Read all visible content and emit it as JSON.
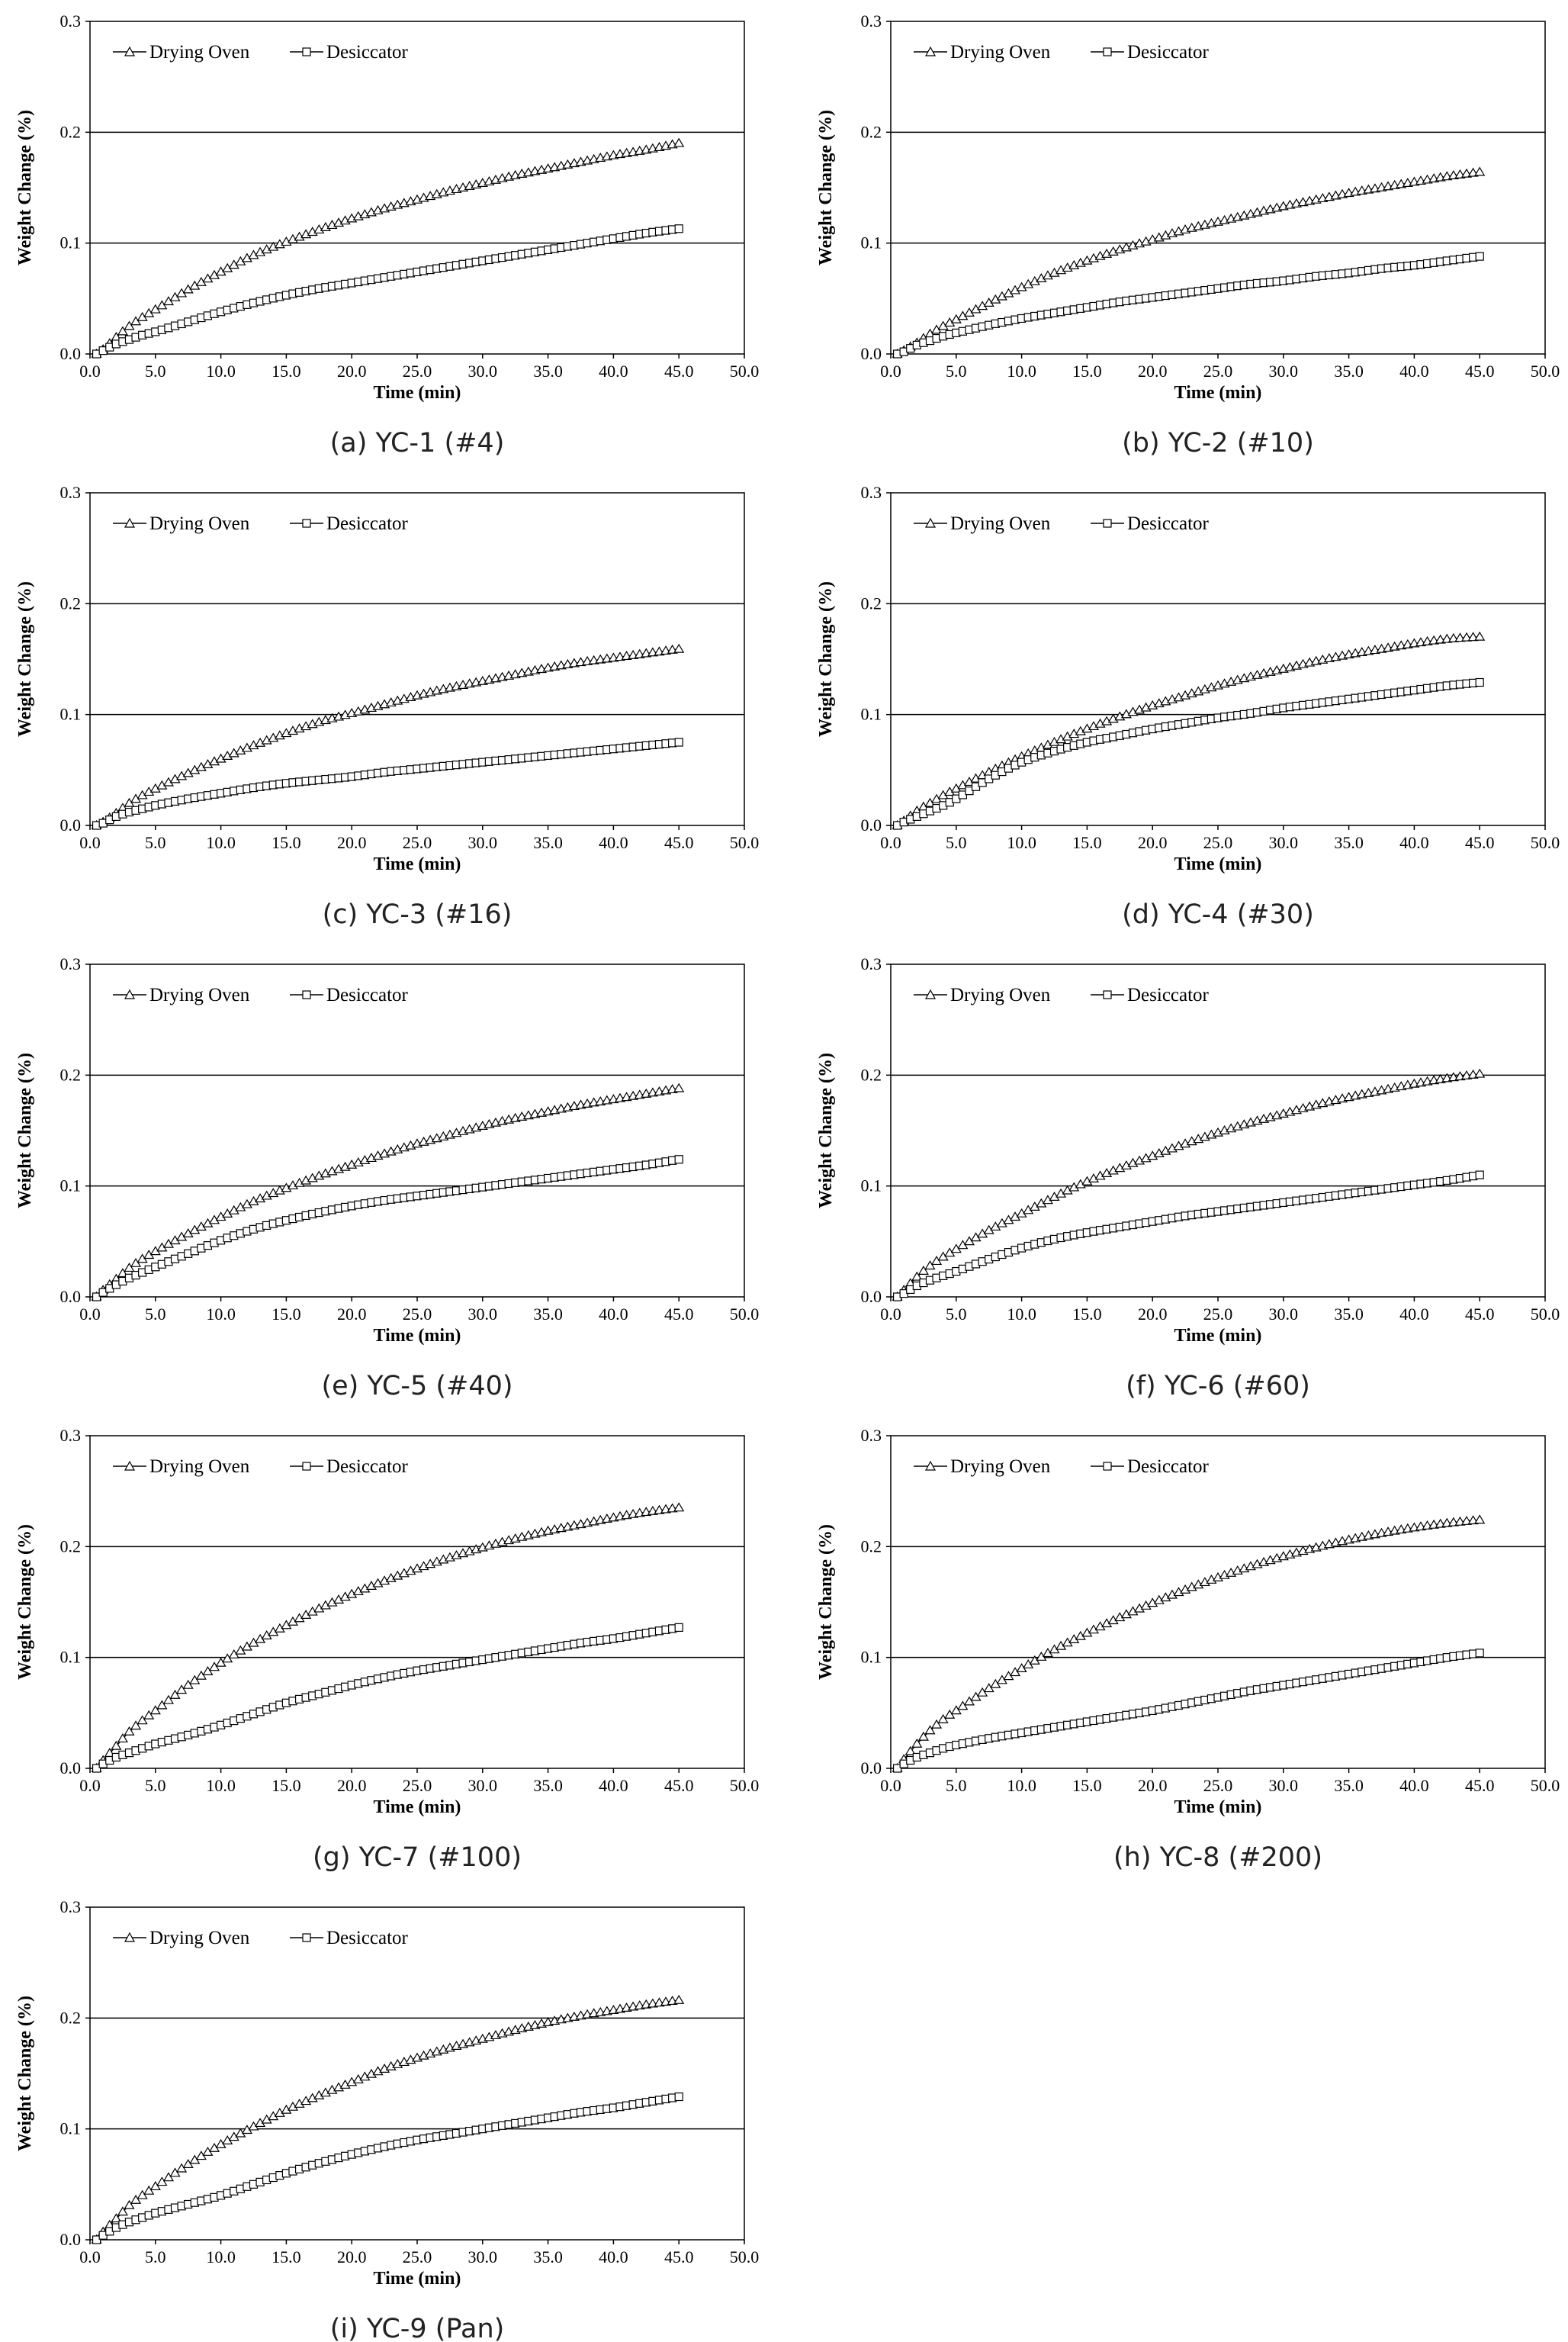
{
  "chart_data": [
    {
      "type": "line",
      "caption": "(a) YC-1 (#4)",
      "xlabel": "Time (min)",
      "ylabel": "Weight Change (%)",
      "xlim": [
        0,
        50
      ],
      "ylim": [
        0,
        0.3
      ],
      "x_ticks": [
        "0.0",
        "5.0",
        "10.0",
        "15.0",
        "20.0",
        "25.0",
        "30.0",
        "35.0",
        "40.0",
        "45.0",
        "50.0"
      ],
      "y_ticks": [
        "0.0",
        "0.1",
        "0.2",
        "0.3"
      ],
      "legend_position": "top-left",
      "x": [
        0.5,
        1.0,
        2.0,
        3.0,
        4.0,
        5.0,
        7.5,
        10.0,
        12.5,
        15.0,
        17.5,
        20.0,
        22.5,
        25.0,
        27.5,
        30.0,
        32.5,
        35.0,
        37.5,
        40.0,
        42.5,
        45.0
      ],
      "series": [
        {
          "name": "Drying Oven",
          "marker": "triangle",
          "values": [
            0.0,
            0.004,
            0.015,
            0.025,
            0.033,
            0.04,
            0.058,
            0.074,
            0.089,
            0.101,
            0.112,
            0.122,
            0.131,
            0.139,
            0.147,
            0.154,
            0.161,
            0.167,
            0.173,
            0.179,
            0.184,
            0.19
          ]
        },
        {
          "name": "Desiccator",
          "marker": "square",
          "values": [
            0.0,
            0.003,
            0.009,
            0.013,
            0.017,
            0.02,
            0.029,
            0.038,
            0.046,
            0.053,
            0.059,
            0.064,
            0.069,
            0.074,
            0.079,
            0.084,
            0.089,
            0.094,
            0.099,
            0.104,
            0.109,
            0.113
          ]
        }
      ]
    },
    {
      "type": "line",
      "caption": "(b) YC-2 (#10)",
      "xlabel": "Time (min)",
      "ylabel": "Weight Change (%)",
      "xlim": [
        0,
        50
      ],
      "ylim": [
        0,
        0.3
      ],
      "x_ticks": [
        "0.0",
        "5.0",
        "10.0",
        "15.0",
        "20.0",
        "25.0",
        "30.0",
        "35.0",
        "40.0",
        "45.0",
        "50.0"
      ],
      "y_ticks": [
        "0.0",
        "0.1",
        "0.2",
        "0.3"
      ],
      "legend_position": "top-left",
      "x": [
        0.5,
        1.0,
        2.0,
        3.0,
        4.0,
        5.0,
        7.5,
        10.0,
        12.5,
        15.0,
        17.5,
        20.0,
        22.5,
        25.0,
        27.5,
        30.0,
        32.5,
        35.0,
        37.5,
        40.0,
        42.5,
        45.0
      ],
      "series": [
        {
          "name": "Drying Oven",
          "marker": "triangle",
          "values": [
            0.0,
            0.003,
            0.01,
            0.018,
            0.025,
            0.031,
            0.046,
            0.06,
            0.073,
            0.084,
            0.094,
            0.103,
            0.112,
            0.119,
            0.126,
            0.133,
            0.139,
            0.145,
            0.15,
            0.155,
            0.16,
            0.164
          ]
        },
        {
          "name": "Desiccator",
          "marker": "square",
          "values": [
            0.0,
            0.002,
            0.008,
            0.012,
            0.016,
            0.019,
            0.026,
            0.032,
            0.037,
            0.042,
            0.047,
            0.051,
            0.055,
            0.059,
            0.063,
            0.066,
            0.07,
            0.073,
            0.077,
            0.08,
            0.084,
            0.088
          ]
        }
      ]
    },
    {
      "type": "line",
      "caption": "(c) YC-3 (#16)",
      "xlabel": "Time (min)",
      "ylabel": "Weight Change (%)",
      "xlim": [
        0,
        50
      ],
      "ylim": [
        0,
        0.3
      ],
      "x_ticks": [
        "0.0",
        "5.0",
        "10.0",
        "15.0",
        "20.0",
        "25.0",
        "30.0",
        "35.0",
        "40.0",
        "45.0",
        "50.0"
      ],
      "y_ticks": [
        "0.0",
        "0.1",
        "0.2",
        "0.3"
      ],
      "legend_position": "top-left",
      "x": [
        0.5,
        1.0,
        2.0,
        3.0,
        4.0,
        5.0,
        7.5,
        10.0,
        12.5,
        15.0,
        17.5,
        20.0,
        22.5,
        25.0,
        27.5,
        30.0,
        32.5,
        35.0,
        37.5,
        40.0,
        42.5,
        45.0
      ],
      "series": [
        {
          "name": "Drying Oven",
          "marker": "triangle",
          "values": [
            0.0,
            0.003,
            0.011,
            0.02,
            0.027,
            0.033,
            0.047,
            0.06,
            0.072,
            0.083,
            0.093,
            0.101,
            0.109,
            0.117,
            0.124,
            0.13,
            0.136,
            0.142,
            0.147,
            0.151,
            0.155,
            0.159
          ]
        },
        {
          "name": "Desiccator",
          "marker": "square",
          "values": [
            0.0,
            0.002,
            0.008,
            0.012,
            0.015,
            0.018,
            0.024,
            0.029,
            0.034,
            0.038,
            0.041,
            0.044,
            0.048,
            0.051,
            0.054,
            0.057,
            0.06,
            0.063,
            0.066,
            0.069,
            0.072,
            0.075
          ]
        }
      ]
    },
    {
      "type": "line",
      "caption": "(d) YC-4 (#30)",
      "xlabel": "Time (min)",
      "ylabel": "Weight Change (%)",
      "xlim": [
        0,
        50
      ],
      "ylim": [
        0,
        0.3
      ],
      "x_ticks": [
        "0.0",
        "5.0",
        "10.0",
        "15.0",
        "20.0",
        "25.0",
        "30.0",
        "35.0",
        "40.0",
        "45.0",
        "50.0"
      ],
      "y_ticks": [
        "0.0",
        "0.1",
        "0.2",
        "0.3"
      ],
      "legend_position": "top-left",
      "x": [
        0.5,
        1.0,
        2.0,
        3.0,
        4.0,
        5.0,
        7.5,
        10.0,
        12.5,
        15.0,
        17.5,
        20.0,
        22.5,
        25.0,
        27.5,
        30.0,
        32.5,
        35.0,
        37.5,
        40.0,
        42.5,
        45.0
      ],
      "series": [
        {
          "name": "Drying Oven",
          "marker": "triangle",
          "values": [
            0.0,
            0.004,
            0.013,
            0.02,
            0.027,
            0.033,
            0.048,
            0.062,
            0.075,
            0.087,
            0.098,
            0.108,
            0.117,
            0.126,
            0.134,
            0.141,
            0.148,
            0.154,
            0.159,
            0.164,
            0.168,
            0.17
          ]
        },
        {
          "name": "Desiccator",
          "marker": "square",
          "values": [
            0.0,
            0.003,
            0.008,
            0.013,
            0.018,
            0.024,
            0.042,
            0.057,
            0.067,
            0.075,
            0.081,
            0.087,
            0.092,
            0.097,
            0.101,
            0.106,
            0.11,
            0.114,
            0.118,
            0.122,
            0.126,
            0.129
          ]
        }
      ]
    },
    {
      "type": "line",
      "caption": "(e) YC-5 (#40)",
      "xlabel": "Time (min)",
      "ylabel": "Weight Change (%)",
      "xlim": [
        0,
        50
      ],
      "ylim": [
        0,
        0.3
      ],
      "x_ticks": [
        "0.0",
        "5.0",
        "10.0",
        "15.0",
        "20.0",
        "25.0",
        "30.0",
        "35.0",
        "40.0",
        "45.0",
        "50.0"
      ],
      "y_ticks": [
        "0.0",
        "0.1",
        "0.2",
        "0.3"
      ],
      "legend_position": "top-left",
      "x": [
        0.5,
        1.0,
        2.0,
        3.0,
        4.0,
        5.0,
        7.5,
        10.0,
        12.5,
        15.0,
        17.5,
        20.0,
        22.5,
        25.0,
        27.5,
        30.0,
        32.5,
        35.0,
        37.5,
        40.0,
        42.5,
        45.0
      ],
      "series": [
        {
          "name": "Drying Oven",
          "marker": "triangle",
          "values": [
            0.0,
            0.006,
            0.016,
            0.026,
            0.034,
            0.041,
            0.057,
            0.072,
            0.086,
            0.098,
            0.109,
            0.119,
            0.129,
            0.138,
            0.146,
            0.154,
            0.161,
            0.167,
            0.173,
            0.178,
            0.183,
            0.188
          ]
        },
        {
          "name": "Desiccator",
          "marker": "square",
          "values": [
            0.0,
            0.004,
            0.011,
            0.017,
            0.022,
            0.027,
            0.039,
            0.051,
            0.061,
            0.069,
            0.076,
            0.082,
            0.087,
            0.091,
            0.095,
            0.099,
            0.103,
            0.107,
            0.111,
            0.115,
            0.119,
            0.124
          ]
        }
      ]
    },
    {
      "type": "line",
      "caption": "(f) YC-6 (#60)",
      "xlabel": "Time (min)",
      "ylabel": "Weight Change (%)",
      "xlim": [
        0,
        50
      ],
      "ylim": [
        0,
        0.3
      ],
      "x_ticks": [
        "0.0",
        "5.0",
        "10.0",
        "15.0",
        "20.0",
        "25.0",
        "30.0",
        "35.0",
        "40.0",
        "45.0",
        "50.0"
      ],
      "y_ticks": [
        "0.0",
        "0.1",
        "0.2",
        "0.3"
      ],
      "legend_position": "top-left",
      "x": [
        0.5,
        1.0,
        2.0,
        3.0,
        4.0,
        5.0,
        7.5,
        10.0,
        12.5,
        15.0,
        17.5,
        20.0,
        22.5,
        25.0,
        27.5,
        30.0,
        32.5,
        35.0,
        37.5,
        40.0,
        42.5,
        45.0
      ],
      "series": [
        {
          "name": "Drying Oven",
          "marker": "triangle",
          "values": [
            0.0,
            0.006,
            0.018,
            0.028,
            0.036,
            0.043,
            0.06,
            0.075,
            0.09,
            0.104,
            0.116,
            0.127,
            0.138,
            0.148,
            0.157,
            0.165,
            0.173,
            0.18,
            0.186,
            0.192,
            0.197,
            0.201
          ]
        },
        {
          "name": "Desiccator",
          "marker": "square",
          "values": [
            0.0,
            0.003,
            0.01,
            0.015,
            0.019,
            0.023,
            0.034,
            0.044,
            0.052,
            0.058,
            0.063,
            0.068,
            0.073,
            0.077,
            0.081,
            0.085,
            0.089,
            0.093,
            0.097,
            0.101,
            0.105,
            0.11
          ]
        }
      ]
    },
    {
      "type": "line",
      "caption": "(g) YC-7 (#100)",
      "xlabel": "Time (min)",
      "ylabel": "Weight Change (%)",
      "xlim": [
        0,
        50
      ],
      "ylim": [
        0,
        0.3
      ],
      "x_ticks": [
        "0.0",
        "5.0",
        "10.0",
        "15.0",
        "20.0",
        "25.0",
        "30.0",
        "35.0",
        "40.0",
        "45.0",
        "50.0"
      ],
      "y_ticks": [
        "0.0",
        "0.1",
        "0.2",
        "0.3"
      ],
      "legend_position": "top-left",
      "x": [
        0.5,
        1.0,
        2.0,
        3.0,
        4.0,
        5.0,
        7.5,
        10.0,
        12.5,
        15.0,
        17.5,
        20.0,
        22.5,
        25.0,
        27.5,
        30.0,
        32.5,
        35.0,
        37.5,
        40.0,
        42.5,
        45.0
      ],
      "series": [
        {
          "name": "Drying Oven",
          "marker": "triangle",
          "values": [
            0.0,
            0.007,
            0.02,
            0.033,
            0.043,
            0.052,
            0.075,
            0.095,
            0.113,
            0.129,
            0.144,
            0.157,
            0.169,
            0.18,
            0.19,
            0.199,
            0.207,
            0.214,
            0.22,
            0.226,
            0.231,
            0.235
          ]
        },
        {
          "name": "Desiccator",
          "marker": "square",
          "values": [
            0.0,
            0.004,
            0.01,
            0.014,
            0.018,
            0.022,
            0.03,
            0.039,
            0.049,
            0.059,
            0.067,
            0.075,
            0.082,
            0.088,
            0.093,
            0.098,
            0.103,
            0.108,
            0.113,
            0.117,
            0.122,
            0.127
          ]
        }
      ]
    },
    {
      "type": "line",
      "caption": "(h) YC-8 (#200)",
      "xlabel": "Time (min)",
      "ylabel": "Weight Change (%)",
      "xlim": [
        0,
        50
      ],
      "ylim": [
        0,
        0.3
      ],
      "x_ticks": [
        "0.0",
        "5.0",
        "10.0",
        "15.0",
        "20.0",
        "25.0",
        "30.0",
        "35.0",
        "40.0",
        "45.0",
        "50.0"
      ],
      "y_ticks": [
        "0.0",
        "0.1",
        "0.2",
        "0.3"
      ],
      "legend_position": "top-left",
      "x": [
        0.5,
        1.0,
        2.0,
        3.0,
        4.0,
        5.0,
        7.5,
        10.0,
        12.5,
        15.0,
        17.5,
        20.0,
        22.5,
        25.0,
        27.5,
        30.0,
        32.5,
        35.0,
        37.5,
        40.0,
        42.5,
        45.0
      ],
      "series": [
        {
          "name": "Drying Oven",
          "marker": "triangle",
          "values": [
            0.0,
            0.008,
            0.022,
            0.034,
            0.044,
            0.052,
            0.072,
            0.09,
            0.107,
            0.122,
            0.136,
            0.149,
            0.161,
            0.172,
            0.182,
            0.191,
            0.199,
            0.206,
            0.212,
            0.217,
            0.221,
            0.224
          ]
        },
        {
          "name": "Desiccator",
          "marker": "square",
          "values": [
            0.0,
            0.004,
            0.01,
            0.014,
            0.018,
            0.021,
            0.027,
            0.032,
            0.037,
            0.042,
            0.047,
            0.052,
            0.058,
            0.064,
            0.07,
            0.075,
            0.08,
            0.085,
            0.09,
            0.095,
            0.1,
            0.104
          ]
        }
      ]
    },
    {
      "type": "line",
      "caption": "(i) YC-9 (Pan)",
      "xlabel": "Time (min)",
      "ylabel": "Weight Change (%)",
      "xlim": [
        0,
        50
      ],
      "ylim": [
        0,
        0.3
      ],
      "x_ticks": [
        "0.0",
        "5.0",
        "10.0",
        "15.0",
        "20.0",
        "25.0",
        "30.0",
        "35.0",
        "40.0",
        "45.0",
        "50.0"
      ],
      "y_ticks": [
        "0.0",
        "0.1",
        "0.2",
        "0.3"
      ],
      "legend_position": "top-left",
      "x": [
        0.5,
        1.0,
        2.0,
        3.0,
        4.0,
        5.0,
        7.5,
        10.0,
        12.5,
        15.0,
        17.5,
        20.0,
        22.5,
        25.0,
        27.5,
        30.0,
        32.5,
        35.0,
        37.5,
        40.0,
        42.5,
        45.0
      ],
      "series": [
        {
          "name": "Drying Oven",
          "marker": "triangle",
          "values": [
            0.0,
            0.007,
            0.019,
            0.031,
            0.04,
            0.048,
            0.068,
            0.086,
            0.102,
            0.117,
            0.13,
            0.142,
            0.154,
            0.164,
            0.173,
            0.181,
            0.189,
            0.196,
            0.202,
            0.207,
            0.212,
            0.216
          ]
        },
        {
          "name": "Desiccator",
          "marker": "square",
          "values": [
            0.0,
            0.004,
            0.011,
            0.016,
            0.02,
            0.024,
            0.032,
            0.04,
            0.05,
            0.06,
            0.069,
            0.077,
            0.084,
            0.09,
            0.095,
            0.1,
            0.105,
            0.11,
            0.115,
            0.119,
            0.124,
            0.129
          ]
        }
      ]
    }
  ]
}
